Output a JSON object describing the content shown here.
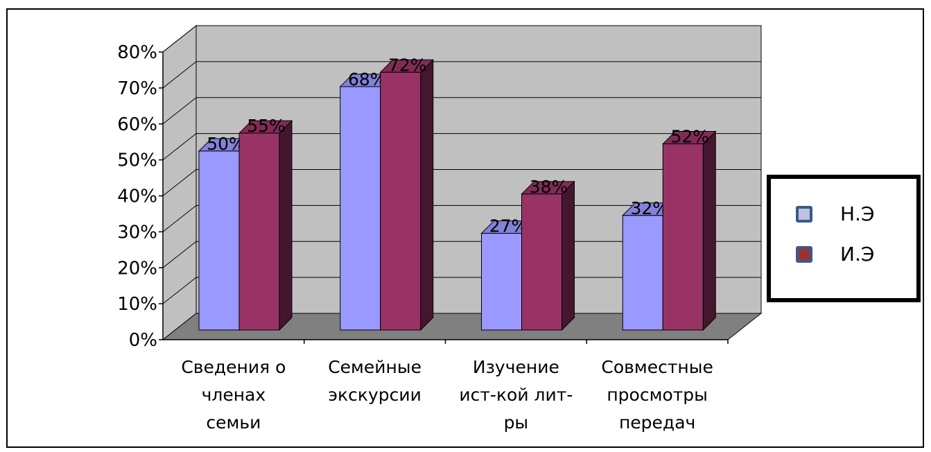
{
  "chart_data": {
    "type": "bar",
    "title": "",
    "xlabel": "",
    "ylabel": "",
    "ylim": [
      0,
      80
    ],
    "yticks": [
      "0%",
      "10%",
      "20%",
      "30%",
      "40%",
      "50%",
      "60%",
      "70%",
      "80%"
    ],
    "categories": [
      [
        "Сведения о",
        "членах",
        "семьи"
      ],
      [
        "Семейные",
        "экскурсии"
      ],
      [
        "Изучение",
        "ист-кой лит-",
        "ры"
      ],
      [
        "Совместные",
        "просмотры",
        "передач"
      ]
    ],
    "series": [
      {
        "name": "Н.Э",
        "values": [
          50,
          68,
          27,
          32
        ],
        "labels": [
          "50%",
          "68%",
          "27%",
          "32%"
        ],
        "color": "#9999ff"
      },
      {
        "name": "И.Э",
        "values": [
          55,
          72,
          38,
          52
        ],
        "labels": [
          "55%",
          "72%",
          "38%",
          "52%"
        ],
        "color": "#993366"
      }
    ],
    "grid": true,
    "three_d": true,
    "legend_position": "right"
  },
  "colors": {
    "wall": "#c0c0c0",
    "floor": "#808080",
    "series1_swatch": "#c0c0e0",
    "series2_swatch": "#a03030"
  }
}
